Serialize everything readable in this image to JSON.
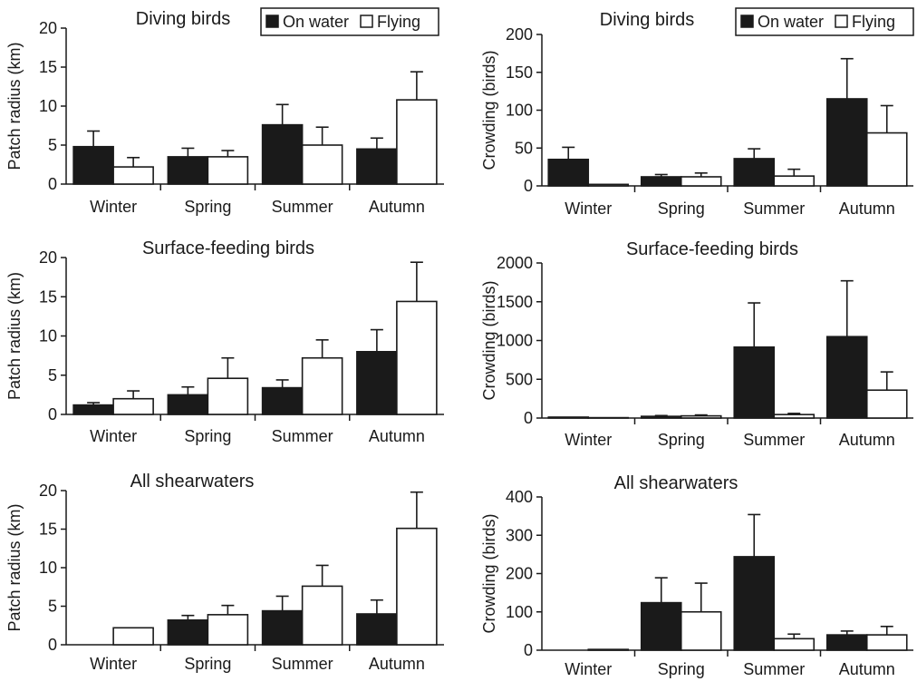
{
  "legend": {
    "on_water": "On water",
    "flying": "Flying"
  },
  "colors": {
    "on_water": "#1a1a1a",
    "flying": "#ffffff",
    "ink": "#1a1a1a"
  },
  "chart_data": [
    {
      "id": "diving-radius",
      "type": "bar",
      "title": "Diving birds",
      "ylabel": "Patch radius (km)",
      "xlabel": "",
      "categories": [
        "Winter",
        "Spring",
        "Summer",
        "Autumn"
      ],
      "ylim": [
        0,
        20
      ],
      "yticks": [
        0,
        5,
        10,
        15,
        20
      ],
      "legend": "top-right",
      "grid": false,
      "series": [
        {
          "name": "On water",
          "values": [
            4.8,
            3.5,
            7.6,
            4.5
          ],
          "errors": [
            2.0,
            1.1,
            2.6,
            1.4
          ]
        },
        {
          "name": "Flying",
          "values": [
            2.2,
            3.5,
            5.0,
            10.8
          ],
          "errors": [
            1.2,
            0.8,
            2.3,
            3.6
          ]
        }
      ]
    },
    {
      "id": "diving-crowding",
      "type": "bar",
      "title": "Diving birds",
      "ylabel": "Crowding (birds)",
      "xlabel": "",
      "categories": [
        "Winter",
        "Spring",
        "Summer",
        "Autumn"
      ],
      "ylim": [
        0,
        200
      ],
      "yticks": [
        0,
        50,
        100,
        150,
        200
      ],
      "legend": "top-right",
      "grid": false,
      "series": [
        {
          "name": "On water",
          "values": [
            35,
            12,
            36,
            115
          ],
          "errors": [
            16,
            3,
            13,
            53
          ]
        },
        {
          "name": "Flying",
          "values": [
            2,
            12,
            13,
            70
          ],
          "errors": [
            0,
            5,
            9,
            36
          ]
        }
      ]
    },
    {
      "id": "surface-radius",
      "type": "bar",
      "title": "Surface-feeding birds",
      "ylabel": "Patch radius (km)",
      "xlabel": "",
      "categories": [
        "Winter",
        "Spring",
        "Summer",
        "Autumn"
      ],
      "ylim": [
        0,
        20
      ],
      "yticks": [
        0,
        5,
        10,
        15,
        20
      ],
      "legend": "",
      "grid": false,
      "series": [
        {
          "name": "On water",
          "values": [
            1.2,
            2.5,
            3.4,
            8.0
          ],
          "errors": [
            0.3,
            1.0,
            1.0,
            2.8
          ]
        },
        {
          "name": "Flying",
          "values": [
            2.0,
            4.6,
            7.2,
            14.4
          ],
          "errors": [
            1.0,
            2.6,
            2.3,
            5.0
          ]
        }
      ]
    },
    {
      "id": "surface-crowding",
      "type": "bar",
      "title": "Surface-feeding birds",
      "ylabel": "Crowding (birds)",
      "xlabel": "",
      "categories": [
        "Winter",
        "Spring",
        "Summer",
        "Autumn"
      ],
      "ylim": [
        0,
        2000
      ],
      "yticks": [
        0,
        500,
        1000,
        1500,
        2000
      ],
      "legend": "",
      "grid": false,
      "series": [
        {
          "name": "On water",
          "values": [
            12,
            22,
            915,
            1050
          ],
          "errors": [
            0,
            10,
            570,
            720
          ]
        },
        {
          "name": "Flying",
          "values": [
            5,
            28,
            45,
            360
          ],
          "errors": [
            0,
            12,
            15,
            235
          ]
        }
      ]
    },
    {
      "id": "shearwaters-radius",
      "type": "bar",
      "title": "All shearwaters",
      "ylabel": "Patch radius (km)",
      "xlabel": "",
      "categories": [
        "Winter",
        "Spring",
        "Summer",
        "Autumn"
      ],
      "ylim": [
        0,
        20
      ],
      "yticks": [
        0,
        5,
        10,
        15,
        20
      ],
      "legend": "",
      "grid": false,
      "series": [
        {
          "name": "On water",
          "values": [
            0,
            3.2,
            4.4,
            4.0
          ],
          "errors": [
            0,
            0.6,
            1.9,
            1.8
          ]
        },
        {
          "name": "Flying",
          "values": [
            2.2,
            3.9,
            7.6,
            15.1
          ],
          "errors": [
            0,
            1.2,
            2.7,
            4.7
          ]
        }
      ]
    },
    {
      "id": "shearwaters-crowding",
      "type": "bar",
      "title": "All shearwaters",
      "ylabel": "Crowding (birds)",
      "xlabel": "",
      "categories": [
        "Winter",
        "Spring",
        "Summer",
        "Autumn"
      ],
      "ylim": [
        0,
        400
      ],
      "yticks": [
        0,
        100,
        200,
        300,
        400
      ],
      "legend": "",
      "grid": false,
      "series": [
        {
          "name": "On water",
          "values": [
            0,
            124,
            244,
            40
          ],
          "errors": [
            0,
            65,
            110,
            10
          ]
        },
        {
          "name": "Flying",
          "values": [
            2,
            100,
            30,
            40
          ],
          "errors": [
            0,
            75,
            12,
            22
          ]
        }
      ]
    }
  ]
}
